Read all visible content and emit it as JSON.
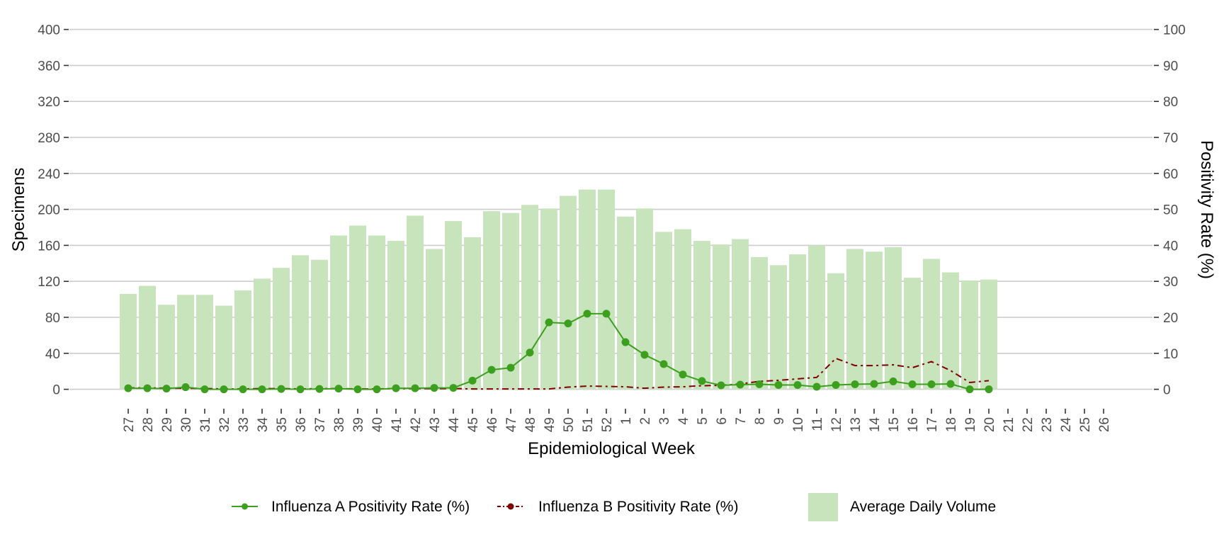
{
  "chart_data": {
    "type": "bar+line",
    "title": "",
    "xlabel": "Epidemiological Week",
    "ylabel_left": "Specimens",
    "ylabel_right": "Positivity Rate (%)",
    "ylim_left": [
      0,
      400
    ],
    "ylim_right": [
      0,
      100
    ],
    "yticks_left": [
      0,
      40,
      80,
      120,
      160,
      200,
      240,
      280,
      320,
      360,
      400
    ],
    "yticks_right": [
      0,
      10,
      20,
      30,
      40,
      50,
      60,
      70,
      80,
      90,
      100
    ],
    "grid": true,
    "legend_position": "bottom",
    "categories": [
      "27",
      "28",
      "29",
      "30",
      "31",
      "32",
      "33",
      "34",
      "35",
      "36",
      "37",
      "38",
      "39",
      "40",
      "41",
      "42",
      "43",
      "44",
      "45",
      "46",
      "47",
      "48",
      "49",
      "50",
      "51",
      "52",
      "1",
      "2",
      "3",
      "4",
      "5",
      "6",
      "7",
      "8",
      "9",
      "10",
      "11",
      "12",
      "13",
      "14",
      "15",
      "16",
      "17",
      "18",
      "19",
      "20",
      "21",
      "22",
      "23",
      "24",
      "25",
      "26"
    ],
    "series": [
      {
        "name": "Average Daily Volume",
        "type": "bar",
        "axis": "left",
        "color": "#c8e4bc",
        "values": [
          106,
          115,
          94,
          105,
          105,
          93,
          110,
          123,
          135,
          149,
          144,
          171,
          182,
          171,
          165,
          193,
          156,
          187,
          169,
          198,
          196,
          205,
          201,
          215,
          222,
          222,
          192,
          201,
          175,
          178,
          165,
          161,
          167,
          147,
          138,
          150,
          160,
          129,
          156,
          153,
          158,
          124,
          145,
          130,
          121,
          122,
          null,
          null,
          null,
          null,
          null,
          null
        ]
      },
      {
        "name": "Influenza A Positivity Rate (%)",
        "type": "line",
        "axis": "right",
        "color": "#3ca01e",
        "style": "solid",
        "marker": "circle",
        "values": [
          0.3,
          0.3,
          0.2,
          0.6,
          0,
          0,
          0,
          0,
          0.1,
          0,
          0.1,
          0.2,
          0,
          0,
          0.3,
          0.3,
          0.4,
          0.4,
          2.4,
          5.4,
          6.0,
          10.2,
          18.6,
          18.3,
          21.0,
          21.0,
          13.1,
          9.6,
          7.0,
          4.1,
          2.3,
          1.1,
          1.3,
          1.4,
          1.2,
          1.2,
          0.7,
          1.2,
          1.4,
          1.5,
          2.2,
          1.4,
          1.4,
          1.5,
          0,
          0,
          null,
          null,
          null,
          null,
          null,
          null
        ]
      },
      {
        "name": "Influenza B Positivity Rate (%)",
        "type": "line",
        "axis": "right",
        "color": "#7f0000",
        "style": "dashdot",
        "marker": "circle",
        "values": [
          0.4,
          0.4,
          0.3,
          0.3,
          0.2,
          0.1,
          0.1,
          0.2,
          0.2,
          0.1,
          0.2,
          0.2,
          0.1,
          0.1,
          0.2,
          0.2,
          0.2,
          0.2,
          0.1,
          0.1,
          0.1,
          0.1,
          0.1,
          0.6,
          0.9,
          0.8,
          0.7,
          0.3,
          0.6,
          0.7,
          1.0,
          1.1,
          1.5,
          2.2,
          2.5,
          2.9,
          3.3,
          8.6,
          6.6,
          6.6,
          6.8,
          6.0,
          7.7,
          5.2,
          1.9,
          2.4,
          null,
          null,
          null,
          null,
          null,
          null
        ]
      }
    ]
  }
}
